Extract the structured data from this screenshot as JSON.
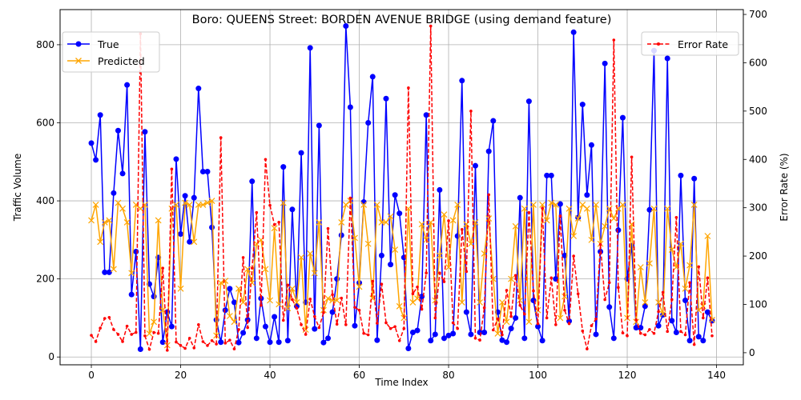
{
  "chart_data": {
    "type": "line",
    "title": "Boro: QUEENS Street: BORDEN AVENUE BRIDGE (using demand feature)",
    "xlabel": "Time Index",
    "ylabel_left": "Traffic Volume",
    "ylabel_right": "Error Rate (%)",
    "xlim": [
      -7,
      146
    ],
    "ylim_left": [
      -20,
      890
    ],
    "ylim_right": [
      -25,
      710
    ],
    "x_ticks": [
      0,
      20,
      40,
      60,
      80,
      100,
      120,
      140
    ],
    "y_ticks_left": [
      0,
      200,
      400,
      600,
      800
    ],
    "y_ticks_right": [
      0,
      100,
      200,
      300,
      400,
      500,
      600,
      700
    ],
    "grid": true,
    "legend_left_placement": "upper-left",
    "legend_right_placement": "upper-right",
    "x": [
      0,
      1,
      2,
      3,
      4,
      5,
      6,
      7,
      8,
      9,
      10,
      11,
      12,
      13,
      14,
      15,
      16,
      17,
      18,
      19,
      20,
      21,
      22,
      23,
      24,
      25,
      26,
      27,
      28,
      29,
      30,
      31,
      32,
      33,
      34,
      35,
      36,
      37,
      38,
      39,
      40,
      41,
      42,
      43,
      44,
      45,
      46,
      47,
      48,
      49,
      50,
      51,
      52,
      53,
      54,
      55,
      56,
      57,
      58,
      59,
      60,
      61,
      62,
      63,
      64,
      65,
      66,
      67,
      68,
      69,
      70,
      71,
      72,
      73,
      74,
      75,
      76,
      77,
      78,
      79,
      80,
      81,
      82,
      83,
      84,
      85,
      86,
      87,
      88,
      89,
      90,
      91,
      92,
      93,
      94,
      95,
      96,
      97,
      98,
      99,
      100,
      101,
      102,
      103,
      104,
      105,
      106,
      107,
      108,
      109,
      110,
      111,
      112,
      113,
      114,
      115,
      116,
      117,
      118,
      119,
      120,
      121,
      122,
      123,
      124,
      125,
      126,
      127,
      128,
      129,
      130,
      131,
      132,
      133,
      134,
      135,
      136,
      137,
      138,
      139
    ],
    "series": [
      {
        "name": "True",
        "color": "#0000ff",
        "marker": "circle",
        "axis": "left",
        "values": [
          548,
          505,
          620,
          217,
          217,
          420,
          580,
          470,
          697,
          160,
          270,
          20,
          577,
          187,
          155,
          255,
          38,
          115,
          78,
          507,
          315,
          413,
          295,
          408,
          688,
          475,
          475,
          332,
          95,
          38,
          120,
          175,
          140,
          37,
          62,
          95,
          450,
          48,
          150,
          78,
          38,
          103,
          38,
          487,
          42,
          378,
          130,
          523,
          140,
          792,
          72,
          593,
          37,
          48,
          115,
          200,
          312,
          848,
          640,
          80,
          190,
          397,
          600,
          718,
          43,
          260,
          662,
          237,
          415,
          368,
          255,
          22,
          63,
          68,
          155,
          620,
          42,
          58,
          428,
          48,
          55,
          60,
          310,
          708,
          115,
          58,
          490,
          63,
          63,
          527,
          605,
          115,
          43,
          38,
          73,
          100,
          408,
          48,
          655,
          145,
          78,
          42,
          465,
          465,
          200,
          392,
          260,
          92,
          832,
          357,
          647,
          415,
          543,
          58,
          270,
          752,
          128,
          48,
          325,
          613,
          200,
          285,
          75,
          75,
          130,
          377,
          785,
          80,
          108,
          765,
          93,
          63,
          465,
          145,
          42,
          457,
          52,
          42,
          115,
          93
        ]
      },
      {
        "name": "Predicted",
        "color": "#ffa500",
        "marker": "x",
        "axis": "left",
        "values": [
          350,
          390,
          295,
          345,
          350,
          225,
          395,
          380,
          345,
          215,
          390,
          380,
          390,
          60,
          90,
          350,
          120,
          30,
          380,
          390,
          175,
          395,
          390,
          295,
          390,
          390,
          395,
          400,
          55,
          190,
          195,
          105,
          90,
          175,
          140,
          225,
          190,
          290,
          300,
          225,
          145,
          330,
          135,
          395,
          125,
          175,
          140,
          255,
          70,
          265,
          215,
          345,
          120,
          150,
          145,
          145,
          345,
          390,
          400,
          305,
          180,
          390,
          290,
          150,
          390,
          345,
          345,
          360,
          275,
          130,
          100,
          380,
          140,
          150,
          340,
          300,
          345,
          145,
          260,
          365,
          230,
          350,
          390,
          140,
          340,
          290,
          345,
          140,
          265,
          355,
          200,
          60,
          140,
          90,
          200,
          335,
          145,
          380,
          90,
          390,
          120,
          390,
          350,
          395,
          390,
          100,
          155,
          380,
          310,
          355,
          390,
          380,
          300,
          390,
          290,
          335,
          380,
          355,
          380,
          390,
          100,
          340,
          90,
          230,
          140,
          240,
          380,
          140,
          110,
          380,
          275,
          230,
          290,
          175,
          235,
          390,
          120,
          130,
          310,
          95
        ]
      },
      {
        "name": "Error Rate",
        "color": "#ff0000",
        "marker": "point",
        "axis": "right",
        "values": [
          36,
          23,
          51,
          71,
          73,
          48,
          38,
          23,
          55,
          38,
          42,
          660,
          35,
          7,
          42,
          40,
          175,
          5,
          380,
          22,
          15,
          9,
          30,
          10,
          58,
          23,
          15,
          25,
          18,
          445,
          20,
          26,
          8,
          48,
          197,
          52,
          175,
          290,
          98,
          400,
          305,
          265,
          270,
          67,
          140,
          110,
          92,
          58,
          38,
          111,
          75,
          52,
          83,
          257,
          120,
          59,
          113,
          58,
          320,
          94,
          88,
          40,
          37,
          148,
          61,
          142,
          62,
          50,
          54,
          25,
          50,
          548,
          122,
          136,
          90,
          165,
          676,
          72,
          165,
          147,
          273,
          62,
          50,
          255,
          168,
          500,
          30,
          26,
          93,
          327,
          47,
          70,
          37,
          129,
          75,
          160,
          98,
          80,
          290,
          128,
          60,
          299,
          72,
          155,
          58,
          283,
          88,
          60,
          200,
          122,
          45,
          8,
          56,
          70,
          224,
          110,
          145,
          647,
          135,
          41,
          35,
          405,
          68,
          40,
          37,
          48,
          40,
          85,
          125,
          44,
          110,
          280,
          44,
          37,
          145,
          17,
          178,
          72,
          155,
          35
        ]
      }
    ]
  }
}
